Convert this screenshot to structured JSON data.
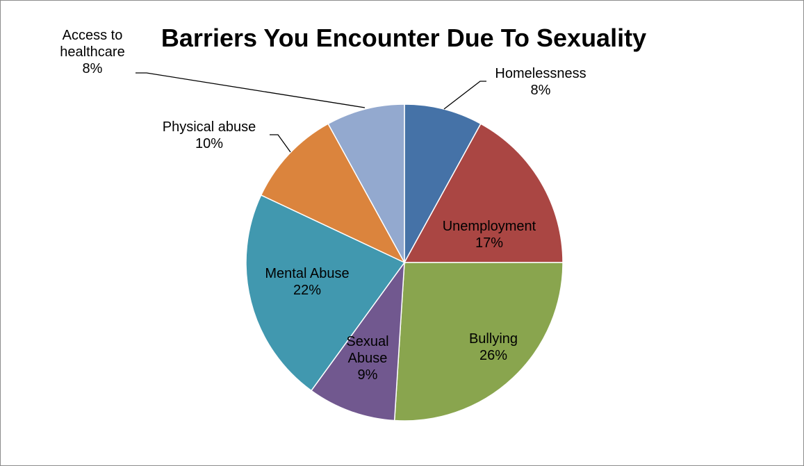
{
  "chart_data": {
    "type": "pie",
    "title": "Barriers You Encounter Due To Sexuality",
    "categories": [
      "Homelessness",
      "Unemployment",
      "Bullying",
      "Sexual Abuse",
      "Mental Abuse",
      "Physical abuse",
      "Access to healthcare"
    ],
    "values": [
      8,
      17,
      26,
      9,
      22,
      10,
      8
    ],
    "percent_labels": [
      "8%",
      "17%",
      "26%",
      "9%",
      "22%",
      "10%",
      "8%"
    ],
    "label_lines": [
      [
        "Homelessness",
        "8%"
      ],
      [
        "Unemployment",
        "17%"
      ],
      [
        "Bullying",
        "26%"
      ],
      [
        "Sexual",
        "Abuse",
        "9%"
      ],
      [
        "Mental Abuse",
        "22%"
      ],
      [
        "Physical abuse",
        "10%"
      ],
      [
        "Access to",
        "healthcare",
        "8%"
      ]
    ],
    "colors": [
      "#4572A7",
      "#AA4643",
      "#89A54E",
      "#71588F",
      "#4198AF",
      "#DB843D",
      "#93A9CF"
    ],
    "legend": "none",
    "start_angle": "12 o'clock, clockwise"
  }
}
